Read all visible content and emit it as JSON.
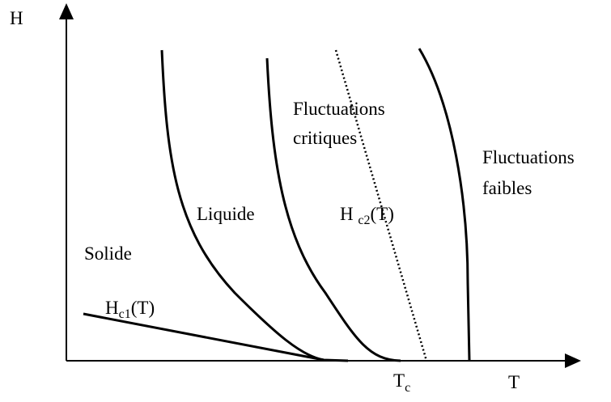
{
  "axes": {
    "y_label": "H",
    "x_label": "T",
    "tc": {
      "base": "T",
      "sub": "c"
    }
  },
  "regions": {
    "solid": "Solide",
    "liquid": "Liquide",
    "critical": [
      "Fluctuations",
      "critiques"
    ],
    "weak": [
      "Fluctuations",
      "faibles"
    ]
  },
  "curves": {
    "hc1": {
      "base": "H",
      "sub": "c1",
      "suffix": "(T)"
    },
    "hc2": {
      "base": "H ",
      "sub": "c2",
      "suffix": "(T)"
    }
  }
}
